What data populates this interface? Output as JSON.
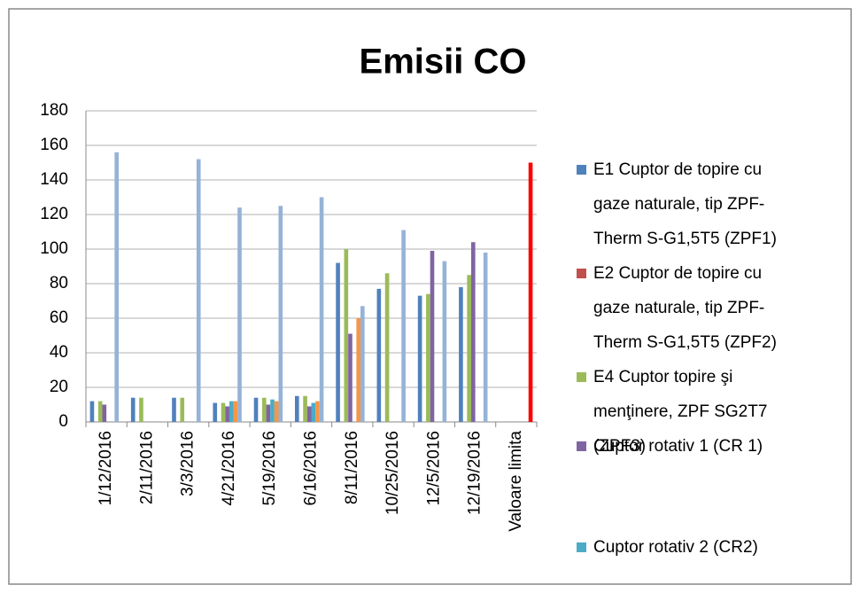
{
  "chart_data": {
    "type": "bar",
    "title": "Emisii  CO",
    "categories": [
      "1/12/2016",
      "2/11/2016",
      "3/3/2016",
      "4/21/2016",
      "5/19/2016",
      "6/16/2016",
      "8/11/2016",
      "10/25/2016",
      "12/5/2016",
      "12/19/2016",
      "Valoare limita"
    ],
    "series": [
      {
        "name": "E1 Cuptor de topire cu\ngaze naturale,   tip ZPF-\nTherm S-G1,5T5   (ZPF1)",
        "color": "#4f81bd",
        "values": [
          12,
          14,
          14,
          11,
          14,
          15,
          92,
          77,
          73,
          78,
          null
        ]
      },
      {
        "name": "E2 Cuptor de topire cu\ngaze naturale, tip ZPF-\nTherm S-G1,5T5  (ZPF2)",
        "color": "#c0504d",
        "values": [
          null,
          null,
          null,
          null,
          null,
          null,
          null,
          null,
          null,
          null,
          null
        ]
      },
      {
        "name": "E4 Cuptor topire şi\nmenţinere, ZPF SG2T7\n(ZPF3)",
        "color": "#9bbb59",
        "values": [
          12,
          14,
          14,
          11,
          14,
          15,
          100,
          86,
          74,
          85,
          null
        ]
      },
      {
        "name": "Cuptor  rotativ 1 (CR 1)",
        "color": "#8064a2",
        "values": [
          10,
          null,
          null,
          9,
          10,
          9,
          51,
          null,
          99,
          104,
          null
        ]
      },
      {
        "name": "Cuptor rotativ 2 (CR2)",
        "color": "#4bacc6",
        "values": [
          null,
          null,
          null,
          12,
          13,
          11,
          null,
          null,
          null,
          null,
          null
        ]
      },
      {
        "color": "#f79646",
        "values": [
          null,
          null,
          null,
          12,
          12,
          12,
          60,
          null,
          null,
          null,
          null
        ]
      },
      {
        "color": "#95b3d7",
        "values": [
          156,
          null,
          152,
          124,
          125,
          130,
          67,
          111,
          93,
          98,
          null
        ]
      },
      {
        "color": "#ff0000",
        "values": [
          null,
          null,
          null,
          null,
          null,
          null,
          null,
          null,
          null,
          null,
          150
        ]
      }
    ],
    "ylim": [
      0,
      180
    ],
    "yticks": [
      0,
      20,
      40,
      60,
      80,
      100,
      120,
      140,
      160,
      180
    ],
    "grid": true,
    "legend": "right"
  }
}
